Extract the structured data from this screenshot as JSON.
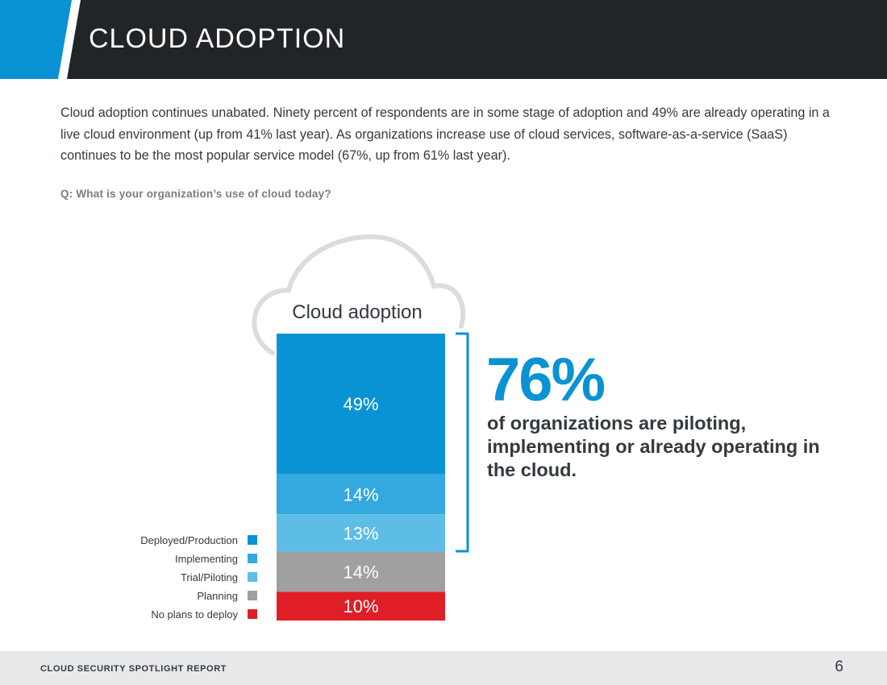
{
  "header": {
    "title": "CLOUD ADOPTION"
  },
  "intro": {
    "paragraph": "Cloud adoption continues unabated. Ninety percent of respondents are in some stage of adoption and 49% are already operating in a live cloud environment (up from 41% last year). As organizations increase use of cloud services, software-as-a-service (SaaS) continues to be the most popular service model (67%, up from 61% last year).",
    "question": "Q: What is your organization’s use of cloud today?"
  },
  "chart_data": {
    "type": "bar",
    "stacked": true,
    "title": "Cloud adoption",
    "categories": [
      "Deployed/Production",
      "Implementing",
      "Trial/Piloting",
      "Planning",
      "No plans to deploy"
    ],
    "values": [
      49,
      14,
      13,
      14,
      10
    ],
    "labels": [
      "49%",
      "14%",
      "13%",
      "14%",
      "10%"
    ],
    "colors": [
      "#0a93d4",
      "#34a9e0",
      "#5ebde6",
      "#a0a0a0",
      "#e01e26"
    ],
    "legend_position": "left"
  },
  "callout": {
    "value": "76%",
    "text": "of organizations are piloting, implementing or already operating in the cloud."
  },
  "footer": {
    "report_title": "CLOUD SECURITY SPOTLIGHT REPORT",
    "page_number": "6"
  },
  "theme": {
    "accent": "#0a93d4",
    "header_bg": "#222528"
  }
}
